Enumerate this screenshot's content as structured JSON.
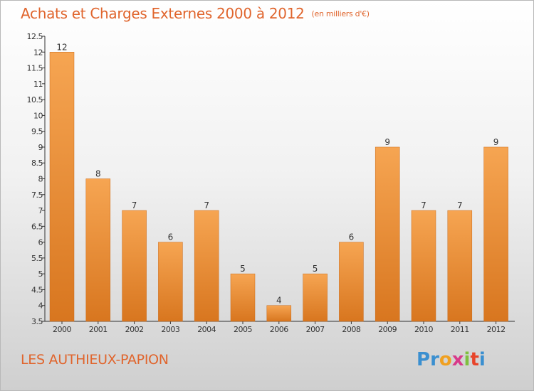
{
  "title": "Achats et Charges Externes 2000 à 2012",
  "unit": "(en milliers d'€)",
  "place": "LES AUTHIEUX-PAPION",
  "logo": {
    "letters": [
      "P",
      "r",
      "o",
      "x",
      "i",
      "t",
      "i"
    ],
    "colors": [
      "#3a8fd0",
      "#3a8fd0",
      "#f0a020",
      "#d83a8a",
      "#7fbf3f",
      "#e8442a",
      "#3a8fd0"
    ]
  },
  "colors": {
    "accent": "#e0652d",
    "bar_light": "#f6a552",
    "bar_dark": "#d8761f",
    "axis": "#333333"
  },
  "chart_data": {
    "type": "bar",
    "title": "Achats et Charges Externes 2000 à 2012",
    "ylabel": "(en milliers d'€)",
    "xlabel": "",
    "categories": [
      "2000",
      "2001",
      "2002",
      "2003",
      "2004",
      "2005",
      "2006",
      "2007",
      "2008",
      "2009",
      "2010",
      "2011",
      "2012"
    ],
    "values": [
      12,
      8,
      7,
      6,
      7,
      5,
      4,
      5,
      6,
      9,
      7,
      7,
      9
    ],
    "value_labels": [
      "12",
      "8",
      "7",
      "6",
      "7",
      "5",
      "4",
      "5",
      "6",
      "9",
      "7",
      "7",
      "9"
    ],
    "ylim": [
      3.5,
      12.5
    ],
    "yticks": [
      3.5,
      4,
      4.5,
      5,
      5.5,
      6,
      6.5,
      7,
      7.5,
      8,
      8.5,
      9,
      9.5,
      10,
      10.5,
      11,
      11.5,
      12,
      12.5
    ],
    "ytick_labels": [
      "3.5",
      "4",
      "4.5",
      "5",
      "5.5",
      "6",
      "6.5",
      "7",
      "7.5",
      "8",
      "8.5",
      "9",
      "9.5",
      "10",
      "10.5",
      "11",
      "11.5",
      "12",
      "12.5"
    ],
    "grid": false,
    "legend": "none"
  }
}
